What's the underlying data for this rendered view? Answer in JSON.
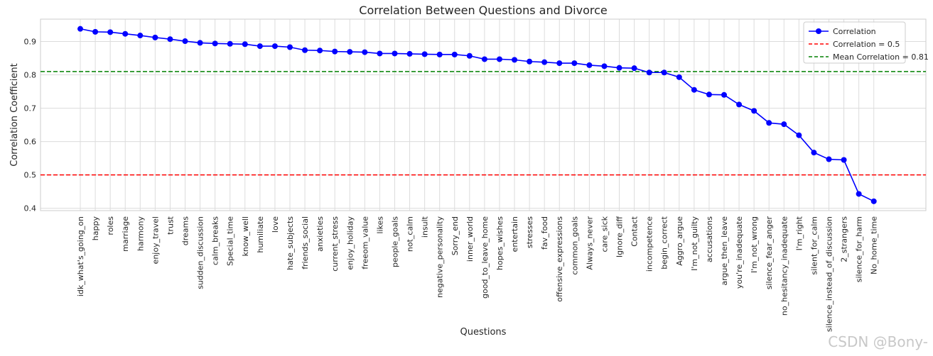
{
  "chart_data": {
    "type": "line",
    "title": "Correlation Between Questions and Divorce",
    "xlabel": "Questions",
    "ylabel": "Correlation Coefficient",
    "ylim": [
      0.393,
      0.967
    ],
    "yticks": [
      "0.4",
      "0.5",
      "0.6",
      "0.7",
      "0.8",
      "0.9"
    ],
    "grid": true,
    "legend_position": "top-right",
    "categories": [
      "idk_what's_going_on",
      "happy",
      "roles",
      "marriage",
      "harmony",
      "enjoy_travel",
      "trust",
      "dreams",
      "sudden_discussion",
      "calm_breaks",
      "Special_time",
      "know_well",
      "humiliate",
      "love",
      "hate_subjects",
      "friends_social",
      "anxieties",
      "current_stress",
      "enjoy_holiday",
      "freeom_value",
      "likes",
      "people_goals",
      "not_calm",
      "insult",
      "negative_personality",
      "Sorry_end",
      "inner_world",
      "good_to_leave_home",
      "hopes_wishes",
      "entertain",
      "stresses",
      "fav_food",
      "offensive_expressions",
      "common_goals",
      "Always_never",
      "care_sick",
      "Ignore_diff",
      "Contact",
      "incompetence",
      "begin_correct",
      "Aggro_argue",
      "I'm_not_guilty",
      "accusations",
      "argue_then_leave",
      "you're_inadequate",
      "I'm_not_wrong",
      "silence_fear_anger",
      "no_hesitancy_inadequate",
      "I'm_right",
      "silent_for_calm",
      "silence_instead_of_discussion",
      "2_strangers",
      "silence_for_harm",
      "No_home_time"
    ],
    "series": [
      {
        "name": "Correlation",
        "color": "#0000ff",
        "values": [
          0.938,
          0.929,
          0.928,
          0.923,
          0.918,
          0.912,
          0.907,
          0.901,
          0.896,
          0.894,
          0.893,
          0.892,
          0.886,
          0.886,
          0.883,
          0.874,
          0.873,
          0.87,
          0.869,
          0.868,
          0.864,
          0.864,
          0.863,
          0.862,
          0.861,
          0.861,
          0.857,
          0.847,
          0.847,
          0.845,
          0.84,
          0.838,
          0.835,
          0.835,
          0.829,
          0.826,
          0.821,
          0.82,
          0.807,
          0.807,
          0.793,
          0.755,
          0.741,
          0.74,
          0.711,
          0.692,
          0.656,
          0.652,
          0.619,
          0.567,
          0.547,
          0.545,
          0.443,
          0.421
        ]
      }
    ],
    "reference_lines": [
      {
        "name": "Correlation = 0.5",
        "value": 0.5,
        "color": "#ff0000",
        "style": "dashed"
      },
      {
        "name": "Mean Correlation = 0.81",
        "value": 0.81,
        "color": "#008000",
        "style": "dashed"
      }
    ]
  },
  "watermark": "CSDN @Bony-"
}
